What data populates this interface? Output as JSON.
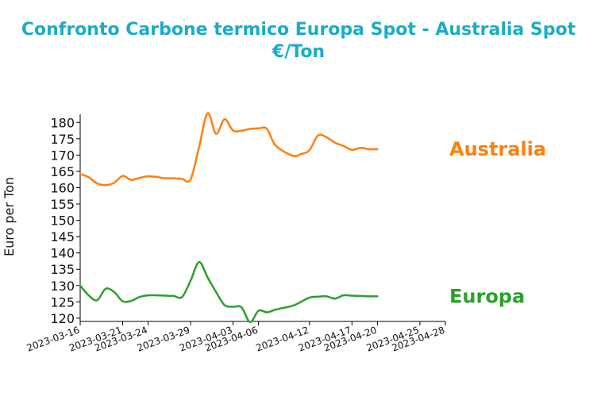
{
  "colors": {
    "title": "#1aacc9",
    "australia": "#ff7f0e",
    "europa": "#2ca02c",
    "axis": "#000000"
  },
  "chart_data": {
    "type": "line",
    "title": "Confronto Carbone termico Europa Spot - Australia Spot",
    "subtitle": "€/Ton",
    "ylabel": "Euro per Ton",
    "xlabel": "",
    "ylim": [
      119,
      182.5
    ],
    "xlim": [
      "2023-03-16",
      "2023-04-28"
    ],
    "yticks": [
      120,
      125,
      130,
      135,
      140,
      145,
      150,
      155,
      160,
      165,
      170,
      175,
      180
    ],
    "xticks": [
      "2023-03-16",
      "2023-03-21",
      "2023-03-24",
      "2023-03-29",
      "2023-04-03",
      "2023-04-06",
      "2023-04-12",
      "2023-04-17",
      "2023-04-20",
      "2023-04-25",
      "2023-04-28"
    ],
    "grid": false,
    "legend": "inline labels at right end of each series",
    "series": [
      {
        "name": "Australia",
        "points": [
          [
            "2023-03-16",
            164.2
          ],
          [
            "2023-03-17",
            163.2
          ],
          [
            "2023-03-18",
            161.3
          ],
          [
            "2023-03-19",
            160.8
          ],
          [
            "2023-03-20",
            161.5
          ],
          [
            "2023-03-21",
            163.6
          ],
          [
            "2023-03-22",
            162.4
          ],
          [
            "2023-03-23",
            163.0
          ],
          [
            "2023-03-24",
            163.5
          ],
          [
            "2023-03-25",
            163.3
          ],
          [
            "2023-03-26",
            162.9
          ],
          [
            "2023-03-27",
            162.9
          ],
          [
            "2023-03-28",
            162.7
          ],
          [
            "2023-03-29",
            162.5
          ],
          [
            "2023-03-30",
            172.5
          ],
          [
            "2023-03-31",
            182.8
          ],
          [
            "2023-04-01",
            176.5
          ],
          [
            "2023-04-02",
            181.0
          ],
          [
            "2023-04-03",
            177.5
          ],
          [
            "2023-04-04",
            177.5
          ],
          [
            "2023-04-05",
            178.0
          ],
          [
            "2023-04-06",
            178.2
          ],
          [
            "2023-04-07",
            178.0
          ],
          [
            "2023-04-08",
            173.0
          ],
          [
            "2023-04-10",
            169.8
          ],
          [
            "2023-04-11",
            170.3
          ],
          [
            "2023-04-12",
            171.5
          ],
          [
            "2023-04-13",
            176.0
          ],
          [
            "2023-04-14",
            175.5
          ],
          [
            "2023-04-15",
            173.8
          ],
          [
            "2023-04-16",
            172.8
          ],
          [
            "2023-04-17",
            171.6
          ],
          [
            "2023-04-18",
            172.2
          ],
          [
            "2023-04-19",
            171.8
          ],
          [
            "2023-04-20",
            171.8
          ]
        ]
      },
      {
        "name": "Europa",
        "points": [
          [
            "2023-03-16",
            130.0
          ],
          [
            "2023-03-17",
            127.0
          ],
          [
            "2023-03-18",
            125.5
          ],
          [
            "2023-03-19",
            129.0
          ],
          [
            "2023-03-20",
            128.0
          ],
          [
            "2023-03-21",
            125.2
          ],
          [
            "2023-03-22",
            125.3
          ],
          [
            "2023-03-23",
            126.5
          ],
          [
            "2023-03-24",
            127.0
          ],
          [
            "2023-03-25",
            127.0
          ],
          [
            "2023-03-26",
            126.9
          ],
          [
            "2023-03-27",
            126.8
          ],
          [
            "2023-03-28",
            126.5
          ],
          [
            "2023-03-29",
            131.5
          ],
          [
            "2023-03-30",
            137.2
          ],
          [
            "2023-03-31",
            132.5
          ],
          [
            "2023-04-01",
            128.0
          ],
          [
            "2023-04-02",
            124.0
          ],
          [
            "2023-04-03",
            123.5
          ],
          [
            "2023-04-04",
            123.3
          ],
          [
            "2023-04-05",
            118.8
          ],
          [
            "2023-04-06",
            122.3
          ],
          [
            "2023-04-07",
            121.8
          ],
          [
            "2023-04-08",
            122.6
          ],
          [
            "2023-04-10",
            123.8
          ],
          [
            "2023-04-11",
            125.0
          ],
          [
            "2023-04-12",
            126.3
          ],
          [
            "2023-04-13",
            126.6
          ],
          [
            "2023-04-14",
            126.7
          ],
          [
            "2023-04-15",
            126.0
          ],
          [
            "2023-04-16",
            127.0
          ],
          [
            "2023-04-17",
            126.9
          ],
          [
            "2023-04-18",
            126.8
          ],
          [
            "2023-04-19",
            126.7
          ],
          [
            "2023-04-20",
            126.7
          ]
        ]
      }
    ]
  }
}
